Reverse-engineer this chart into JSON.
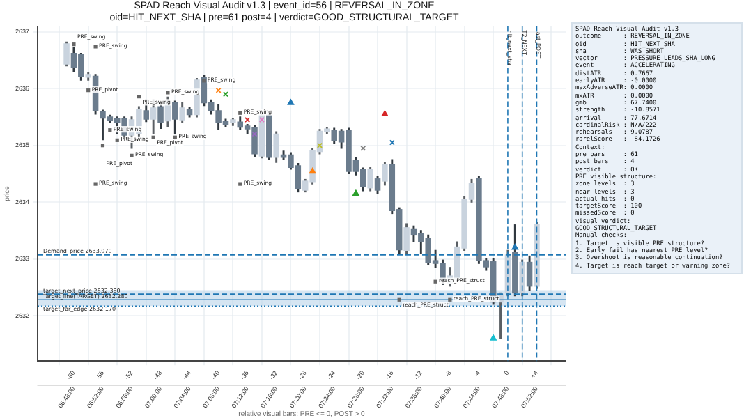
{
  "chart_data": {
    "type": "candlestick",
    "title": "SPAD Reach Visual Audit v1.3 | event_id=56 | REVERSAL_IN_ZONE\noid=HIT_NEXT_SHA | pre=61 post=4 | verdict=GOOD_STRUCTURAL_TARGET",
    "xlabel": "relative visual bars: PRE <= 0, POST > 0",
    "ylabel": "price",
    "x": [
      -61,
      -60,
      -59,
      -58,
      -57,
      -56,
      -55,
      -54,
      -53,
      -52,
      -51,
      -50,
      -49,
      -48,
      -47,
      -46,
      -45,
      -44,
      -43,
      -42,
      -41,
      -40,
      -39,
      -38,
      -37,
      -36,
      -35,
      -34,
      -33,
      -32,
      -31,
      -30,
      -29,
      -28,
      -27,
      -26,
      -25,
      -24,
      -23,
      -22,
      -21,
      -20,
      -19,
      -18,
      -17,
      -16,
      -15,
      -14,
      -13,
      -12,
      -11,
      -10,
      -9,
      -8,
      -7,
      -6,
      -5,
      -4,
      -3,
      -2,
      -1,
      0,
      1,
      2,
      3,
      4
    ],
    "colors": [
      "#c9d3de",
      "#6b7c8d",
      "#6b7c8d",
      "#c9d3de",
      "#6b7c8d",
      "#6b7c8d",
      "#6b7c8d",
      "#6b7c8d",
      "#6b7c8d",
      "#c9d3de",
      "#c9d3de",
      "#6b7c8d",
      "#c9d3de",
      "#6b7c8d",
      "#c9d3de",
      "#6b7c8d",
      "#c9d3de",
      "#6b7c8d",
      "#c9d3de",
      "#6b7c8d",
      "#6b7c8d",
      "#6b7c8d",
      "#6b7c8d",
      "#c9d3de",
      "#6b7c8d",
      "#6b7c8d",
      "#6b7c8d",
      "#c9d3de",
      "#6b7c8d",
      "#c9d3de",
      "#6b7c8d",
      "#6b7c8d",
      "#6b7c8d",
      "#c9d3de",
      "#c9d3de",
      "#c9d3de",
      "#c9d3de",
      "#6b7c8d",
      "#6b7c8d",
      "#6b7c8d",
      "#6b7c8d",
      "#6b7c8d",
      "#c9d3de",
      "#6b7c8d",
      "#c9d3de",
      "#6b7c8d",
      "#6b7c8d",
      "#c9d3de",
      "#6b7c8d",
      "#6b7c8d",
      "#6b7c8d",
      "#6b7c8d",
      "#6b7c8d",
      "#c9d3de",
      "#c9d3de",
      "#c9d3de",
      "#c9d3de",
      "#6b7c8d",
      "#6b7c8d",
      "#6b7c8d",
      "#c9d3de",
      "#c9d3de",
      "#6b7c8d",
      "#c9d3de",
      "#6b7c8d",
      "#c9d3de"
    ],
    "ohlc": [
      [
        2636.43,
        2636.82,
        2636.4,
        2636.79
      ],
      [
        2636.62,
        2636.72,
        2636.3,
        2636.37
      ],
      [
        2636.6,
        2636.62,
        2636.15,
        2636.21
      ],
      [
        2636.2,
        2636.28,
        2636.15,
        2636.25
      ],
      [
        2636.22,
        2636.25,
        2635.55,
        2635.61
      ],
      [
        2635.59,
        2635.62,
        2635.1,
        2635.48
      ],
      [
        2635.5,
        2635.53,
        2635.4,
        2635.44
      ],
      [
        2635.47,
        2635.5,
        2635.2,
        2635.4
      ],
      [
        2635.47,
        2635.5,
        2635.1,
        2635.18
      ],
      [
        2635.18,
        2635.5,
        2634.95,
        2635.45
      ],
      [
        2635.2,
        2635.68,
        2635.15,
        2635.64
      ],
      [
        2635.61,
        2635.8,
        2635.42,
        2635.46
      ],
      [
        2635.46,
        2635.8,
        2635.2,
        2635.66
      ],
      [
        2635.68,
        2635.72,
        2635.3,
        2635.4
      ],
      [
        2635.43,
        2635.85,
        2635.33,
        2635.77
      ],
      [
        2635.75,
        2635.78,
        2635.2,
        2635.46
      ],
      [
        2635.45,
        2635.75,
        2635.4,
        2635.66
      ],
      [
        2635.64,
        2635.67,
        2635.5,
        2635.54
      ],
      [
        2635.54,
        2636.18,
        2635.5,
        2636.15
      ],
      [
        2636.2,
        2636.23,
        2635.7,
        2635.75
      ],
      [
        2635.76,
        2635.8,
        2635.55,
        2635.61
      ],
      [
        2635.61,
        2635.72,
        2635.28,
        2635.41
      ],
      [
        2635.43,
        2635.46,
        2635.33,
        2635.37
      ],
      [
        2635.4,
        2635.48,
        2635.35,
        2635.45
      ],
      [
        2635.41,
        2635.5,
        2635.28,
        2635.32
      ],
      [
        2635.34,
        2635.37,
        2635.2,
        2635.29
      ],
      [
        2635.31,
        2635.35,
        2634.8,
        2634.85
      ],
      [
        2634.81,
        2635.56,
        2634.78,
        2635.53
      ],
      [
        2635.53,
        2635.56,
        2634.75,
        2634.79
      ],
      [
        2634.79,
        2635.24,
        2634.7,
        2635.2
      ],
      [
        2634.83,
        2634.9,
        2634.75,
        2634.79
      ],
      [
        2634.83,
        2634.87,
        2634.58,
        2634.61
      ],
      [
        2634.64,
        2634.68,
        2634.18,
        2634.24
      ],
      [
        2634.21,
        2634.4,
        2634.18,
        2634.37
      ],
      [
        2634.36,
        2634.95,
        2634.32,
        2634.91
      ],
      [
        2634.89,
        2635.28,
        2634.85,
        2635.25
      ],
      [
        2635.25,
        2635.32,
        2635.2,
        2635.29
      ],
      [
        2635.27,
        2635.3,
        2635.04,
        2635.08
      ],
      [
        2635.25,
        2635.28,
        2634.95,
        2635.06
      ],
      [
        2635.27,
        2635.3,
        2634.5,
        2634.54
      ],
      [
        2634.73,
        2634.78,
        2634.48,
        2634.54
      ],
      [
        2634.57,
        2634.6,
        2634.2,
        2634.28
      ],
      [
        2634.25,
        2634.62,
        2634.2,
        2634.57
      ],
      [
        2634.41,
        2634.45,
        2634.15,
        2634.21
      ],
      [
        2634.37,
        2634.7,
        2634.3,
        2634.67
      ],
      [
        2634.67,
        2634.75,
        2633.8,
        2633.85
      ],
      [
        2633.87,
        2633.9,
        2633.1,
        2633.16
      ],
      [
        2633.15,
        2633.62,
        2633.1,
        2633.55
      ],
      [
        2633.53,
        2633.58,
        2633.3,
        2633.42
      ],
      [
        2633.45,
        2633.5,
        2633.1,
        2633.31
      ],
      [
        2633.36,
        2633.42,
        2632.9,
        2632.94
      ],
      [
        2632.97,
        2633.15,
        2632.85,
        2632.92
      ],
      [
        2632.92,
        2632.98,
        2632.55,
        2632.6
      ],
      [
        2632.57,
        2632.85,
        2632.52,
        2632.7
      ],
      [
        2632.64,
        2633.3,
        2632.6,
        2633.21
      ],
      [
        2633.19,
        2634.1,
        2633.15,
        2634.05
      ],
      [
        2634.05,
        2634.4,
        2634.0,
        2634.33
      ],
      [
        2634.41,
        2634.45,
        2632.92,
        2632.97
      ],
      [
        2632.97,
        2633.0,
        2632.8,
        2632.86
      ],
      [
        2632.95,
        2633.0,
        2632.2,
        2632.24
      ],
      [
        2632.24,
        2632.4,
        2631.6,
        2632.38
      ],
      [
        2632.4,
        2633.15,
        2632.35,
        2633.07
      ],
      [
        2633.11,
        2633.6,
        2632.35,
        2632.4
      ],
      [
        2632.4,
        2632.98,
        2632.35,
        2632.94
      ],
      [
        2632.94,
        2633.05,
        2632.45,
        2632.52
      ],
      [
        2632.52,
        2633.65,
        2632.48,
        2633.61
      ]
    ],
    "series": [
      {
        "type": "scatter",
        "marker": "triangle",
        "x": [
          -30,
          -27,
          -21,
          -17,
          -2,
          1
        ],
        "values": [
          2635.75,
          2634.54,
          2634.15,
          2635.55,
          2631.6,
          2633.2
        ],
        "colors": [
          "#1f77b4",
          "#ff7f0e",
          "#2ca02c",
          "#d62728",
          "#17becf",
          "#1f77b4"
        ]
      },
      {
        "type": "scatter",
        "marker": "cross",
        "x": [
          -40,
          -39,
          -36,
          -35,
          -34,
          -26,
          -16,
          -20
        ],
        "values": [
          2635.97,
          2635.9,
          2635.45,
          2635.2,
          2635.45,
          2635.0,
          2635.05,
          2634.95
        ],
        "colors": [
          "#ff7f0e",
          "#2ca02c",
          "#d62728",
          "#9467bd",
          "#e377c2",
          "#bcbd22",
          "#1f77b4",
          "#7f7f7f"
        ]
      }
    ],
    "xlim": [
      -65,
      8
    ],
    "ylim": [
      2631.2,
      2637.1
    ],
    "xticks": [
      -60,
      -56,
      -52,
      -48,
      -44,
      -40,
      -36,
      -32,
      -28,
      -24,
      -20,
      -16,
      -12,
      -8,
      -4,
      0,
      {
        "value": 4,
        "label": "+4"
      }
    ],
    "x2lim": [
      6.716667,
      7.933333
    ],
    "x2ticks": [
      {
        "value": 6.8,
        "label": "06:48:00"
      },
      {
        "value": 6.866667,
        "label": "06:52:00"
      },
      {
        "value": 6.933333,
        "label": "06:56:00"
      },
      {
        "value": 7,
        "label": "07:00:00"
      },
      {
        "value": 7.066667,
        "label": "07:04:00"
      },
      {
        "value": 7.133333,
        "label": "07:08:00"
      },
      {
        "value": 7.2,
        "label": "07:12:00"
      },
      {
        "value": 7.266667,
        "label": "07:16:00"
      },
      {
        "value": 7.333333,
        "label": "07:20:00"
      },
      {
        "value": 7.4,
        "label": "07:24:00"
      },
      {
        "value": 7.466667,
        "label": "07:28:00"
      },
      {
        "value": 7.533333,
        "label": "07:32:00"
      },
      {
        "value": 7.6,
        "label": "07:36:00"
      },
      {
        "value": 7.666667,
        "label": "07:40:00"
      },
      {
        "value": 7.733333,
        "label": "07:44:00"
      },
      {
        "value": 7.8,
        "label": "07:48:00"
      },
      {
        "value": 7.866667,
        "label": "07:52:00"
      }
    ],
    "yticks": [
      2632,
      2633,
      2634,
      2635,
      2636,
      2637
    ],
    "grid": true,
    "legend": false,
    "bands": [
      {
        "axis": "y",
        "from": 2632.17,
        "to": 2632.45,
        "color": "#b9d3ea"
      }
    ],
    "ref_lines": [
      {
        "axis": "y",
        "value": 2633.07,
        "label": "Demand_price 2633.070",
        "color": "#1f77b4",
        "line_style": "dashed"
      },
      {
        "axis": "y",
        "value": 2632.38,
        "label": "target_next_price 2632.380",
        "color": "#1f77b4",
        "line_style": "dashed"
      },
      {
        "axis": "y",
        "value": 2632.28,
        "label": "Target_line(TARGET) 2632.280",
        "color": "#1f77b4",
        "line_style": "solid"
      },
      {
        "axis": "y",
        "value": 2632.17,
        "label": "target_far_edge 2632.170",
        "color": "#1f77b4",
        "line_style": "dotted"
      },
      {
        "axis": "x",
        "value": 0,
        "label": "hit_next_sha",
        "color": "#1f77b4",
        "line_style": "dashed"
      },
      {
        "axis": "x",
        "value": 2,
        "label": "T2_NEXT",
        "color": "#1f77b4",
        "line_style": "dashed"
      },
      {
        "axis": "x",
        "value": 4,
        "label": "last_POST",
        "color": "#1f77b4",
        "line_style": "dashed"
      }
    ],
    "annotations": [
      {
        "text": "PRE_swing",
        "x": -60,
        "y": 2636.78
      },
      {
        "text": "PRE_swing",
        "x": -57,
        "y": 2636.74
      },
      {
        "text": "PRE_pivot",
        "x": -58,
        "y": 2635.97
      },
      {
        "text": "PRE_swing",
        "x": -57,
        "y": 2634.32
      },
      {
        "text": "PRE_pivot",
        "x": -56,
        "y": 2635.0
      },
      {
        "text": "PRE_swing",
        "x": -55,
        "y": 2635.27
      },
      {
        "text": "PRE_swing",
        "x": -54,
        "y": 2635.09
      },
      {
        "text": "PRE_swing",
        "x": -52,
        "y": 2634.82
      },
      {
        "text": "PRE_swing",
        "x": -51,
        "y": 2635.86
      },
      {
        "text": "PRE_pivot",
        "x": -49,
        "y": 2635.14
      },
      {
        "text": "PRE_swing",
        "x": -47,
        "y": 2635.93
      },
      {
        "text": "PRE_swing",
        "x": -46,
        "y": 2635.14
      },
      {
        "text": "PRE_swing",
        "x": -42,
        "y": 2636.14
      },
      {
        "text": "PRE_swing",
        "x": -37,
        "y": 2635.57
      },
      {
        "text": "PRE_swing",
        "x": -37,
        "y": 2634.32
      },
      {
        "text": "reach_PRE_struct",
        "x": -15,
        "y": 2632.28
      },
      {
        "text": "reach_PRE_struct",
        "x": -10,
        "y": 2632.6
      },
      {
        "text": "reach_PRE_struct",
        "x": -8,
        "y": 2632.28
      },
      "SPAD Reach Visual Audit v1.3",
      "outcome      : REVERSAL_IN_ZONE",
      "oid          : HIT_NEXT_SHA",
      "sha          : WAS_SHORT",
      "vector       : PRESSURE_LEADS_SHA_LONG",
      "event        : ACCELERATING",
      "distATR      : 0.7667",
      "earlyATR     : -0.0000",
      "maxAdverseATR: 0.0000",
      "mxATR        : 0.0000",
      "gmb          : 67.7400",
      "strength     : -10.8571",
      "arrival      : 77.6714",
      "cardinalRisk : N/A/222",
      "rehearsals   : 9.0787",
      "rarelScore   : -84.1726",
      "Context:",
      "pre bars     : 61",
      "post bars    : 4",
      "verdict      : OK",
      "PRE visible structure:",
      "zone levels  : 3",
      "near levels  : 3",
      "actual hits  : 0",
      "targetScore  : 100",
      "missedScore  : 0",
      "visual verdict:",
      "GOOD_STRUCTURAL_TARGET",
      "Manual checks:",
      "1. Target is visible PRE structure?",
      "2. Early fail has nearest PRE level?",
      "3. Overshoot is reasonable continuation?",
      "4. Target is reach target or warning zone?"
    ]
  }
}
